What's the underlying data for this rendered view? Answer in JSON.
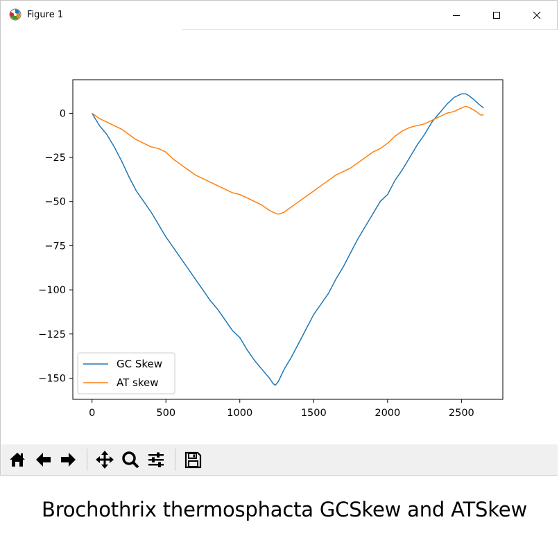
{
  "window": {
    "title": "Figure 1",
    "icons": {
      "app": "matplotlib-logo-icon",
      "minimize": "minimize-icon",
      "maximize": "maximize-icon",
      "close": "close-icon"
    }
  },
  "toolbar": {
    "buttons": [
      "home-icon",
      "back-arrow-icon",
      "forward-arrow-icon",
      "pan-move-icon",
      "zoom-magnifier-icon",
      "configure-subplots-icon",
      "save-floppy-icon"
    ]
  },
  "caption": "Brochothrix thermosphacta GCSkew and ATSkew",
  "colors": {
    "gc": "#1f77b4",
    "at": "#ff7f0e"
  },
  "chart_data": {
    "type": "line",
    "title": "",
    "xlabel": "",
    "ylabel": "",
    "xlim": [
      -130,
      2780
    ],
    "ylim": [
      -162,
      19
    ],
    "xticks": [
      0,
      500,
      1000,
      1500,
      2000,
      2500
    ],
    "xtick_labels": [
      "0",
      "500",
      "1000",
      "1500",
      "2000",
      "2500"
    ],
    "yticks": [
      0,
      -25,
      -50,
      -75,
      -100,
      -125,
      -150
    ],
    "ytick_labels": [
      "0",
      "−25",
      "−50",
      "−75",
      "−100",
      "−125",
      "−150"
    ],
    "grid": false,
    "legend_position": "lower-left",
    "series": [
      {
        "name": "GC Skew",
        "color": "#1f77b4",
        "x": [
          0,
          50,
          100,
          150,
          200,
          250,
          300,
          350,
          400,
          450,
          500,
          550,
          600,
          650,
          700,
          750,
          800,
          850,
          900,
          950,
          1000,
          1050,
          1100,
          1150,
          1200,
          1225,
          1240,
          1260,
          1300,
          1350,
          1400,
          1450,
          1500,
          1550,
          1600,
          1650,
          1700,
          1750,
          1800,
          1850,
          1900,
          1950,
          2000,
          2050,
          2100,
          2150,
          2200,
          2250,
          2300,
          2350,
          2400,
          2450,
          2500,
          2530,
          2550,
          2580,
          2620,
          2650
        ],
        "y": [
          0,
          -7,
          -12,
          -19,
          -27,
          -36,
          -44,
          -50,
          -56,
          -63,
          -70,
          -76,
          -82,
          -88,
          -94,
          -100,
          -106,
          -111,
          -117,
          -123,
          -127,
          -134,
          -140,
          -145,
          -150,
          -153,
          -154,
          -152,
          -145,
          -138,
          -130,
          -122,
          -114,
          -108,
          -102,
          -94,
          -87,
          -79,
          -71,
          -64,
          -57,
          -50,
          -46,
          -38,
          -32,
          -25,
          -18,
          -12,
          -5,
          0,
          5,
          9,
          11,
          11,
          10,
          8,
          5,
          3
        ]
      },
      {
        "name": "AT skew",
        "color": "#ff7f0e",
        "x": [
          0,
          50,
          100,
          150,
          200,
          250,
          300,
          350,
          400,
          450,
          500,
          550,
          600,
          650,
          700,
          750,
          800,
          850,
          900,
          950,
          1000,
          1050,
          1100,
          1150,
          1200,
          1250,
          1270,
          1300,
          1350,
          1400,
          1450,
          1500,
          1550,
          1600,
          1650,
          1700,
          1750,
          1800,
          1850,
          1900,
          1950,
          2000,
          2050,
          2100,
          2150,
          2200,
          2250,
          2300,
          2350,
          2400,
          2450,
          2500,
          2530,
          2560,
          2600,
          2630,
          2650
        ],
        "y": [
          0,
          -3,
          -5,
          -7,
          -9,
          -12,
          -15,
          -17,
          -19,
          -20,
          -22,
          -26,
          -29,
          -32,
          -35,
          -37,
          -39,
          -41,
          -43,
          -45,
          -46,
          -48,
          -50,
          -52,
          -55,
          -57,
          -57,
          -56,
          -53,
          -50,
          -47,
          -44,
          -41,
          -38,
          -35,
          -33,
          -31,
          -28,
          -25,
          -22,
          -20,
          -17,
          -13,
          -10,
          -8,
          -7,
          -6,
          -4,
          -2,
          0,
          1,
          3,
          4,
          3,
          1,
          -1,
          -1
        ]
      }
    ]
  }
}
